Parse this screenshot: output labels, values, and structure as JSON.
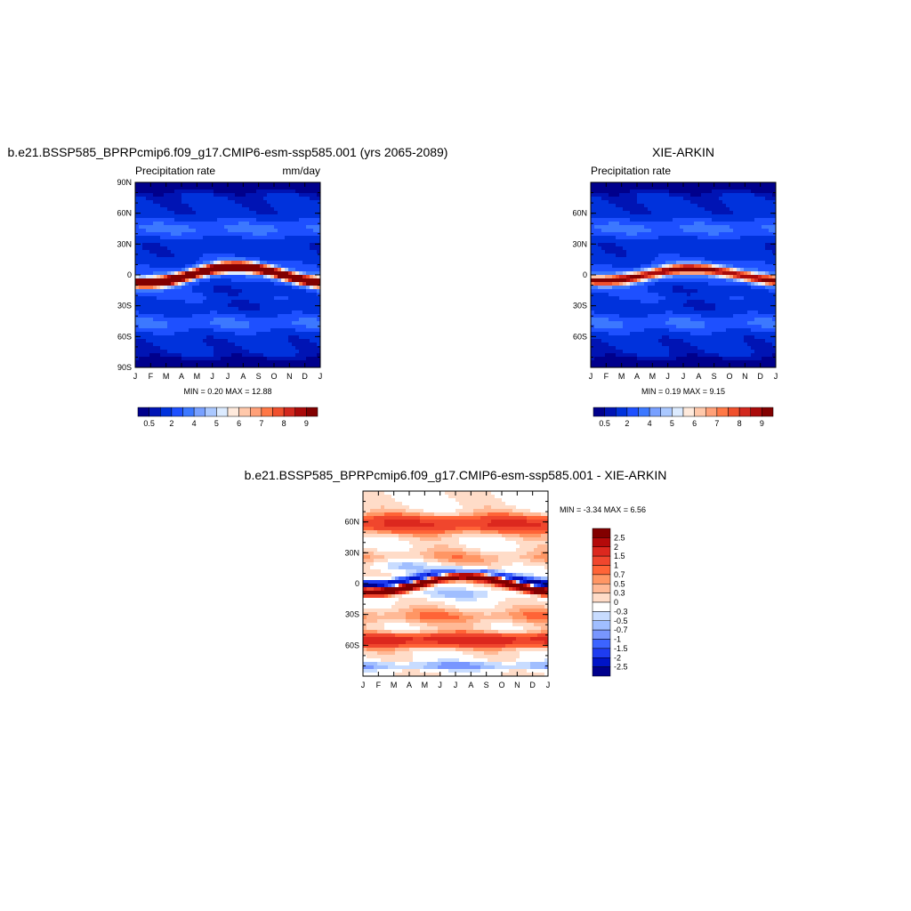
{
  "chart_data": [
    {
      "type": "heatmap",
      "title": "b.e21.BSSP585_BPRPcmip6.f09_g17.CMIP6-esm-ssp585.001 (yrs 2065-2089)",
      "left_label": "Precipitation rate",
      "right_label": "mm/day",
      "x": [
        "J",
        "F",
        "M",
        "A",
        "M",
        "J",
        "J",
        "A",
        "S",
        "O",
        "N",
        "D",
        "J"
      ],
      "y_ticks": [
        "90N",
        "60N",
        "30N",
        "0",
        "30S",
        "60S",
        "90S"
      ],
      "y_tick_lats": [
        90,
        60,
        30,
        0,
        -30,
        -60,
        -90
      ],
      "ylim": [
        -90,
        90
      ],
      "stats": "MIN =   0.20 MAX =  12.88",
      "min": 0.2,
      "max": 12.88,
      "itcz_amplitude_deg": 8,
      "colorbar": {
        "labels": [
          "0.5",
          "2",
          "4",
          "5",
          "6",
          "7",
          "8",
          "9"
        ],
        "colors": [
          "#00008c",
          "#0014b4",
          "#0032dc",
          "#1e50ff",
          "#3c78ff",
          "#78a0ff",
          "#aac8ff",
          "#dcebff",
          "#ffeadc",
          "#ffc8aa",
          "#ffa078",
          "#ff7846",
          "#f0502d",
          "#d2281e",
          "#aa0a0a",
          "#820000"
        ]
      }
    },
    {
      "type": "heatmap",
      "title": "XIE-ARKIN",
      "left_label": "Precipitation rate",
      "x": [
        "J",
        "F",
        "M",
        "A",
        "M",
        "J",
        "J",
        "A",
        "S",
        "O",
        "N",
        "D",
        "J"
      ],
      "y_ticks": [
        "60N",
        "30N",
        "0",
        "30S",
        "60S"
      ],
      "y_tick_lats": [
        60,
        30,
        0,
        -30,
        -60
      ],
      "ylim": [
        -90,
        90
      ],
      "stats": "MIN =   0.19 MAX =   9.15",
      "min": 0.19,
      "max": 9.15,
      "itcz_amplitude_deg": 6,
      "colorbar": {
        "labels": [
          "0.5",
          "2",
          "4",
          "5",
          "6",
          "7",
          "8",
          "9"
        ],
        "colors": [
          "#00008c",
          "#0014b4",
          "#0032dc",
          "#1e50ff",
          "#3c78ff",
          "#78a0ff",
          "#aac8ff",
          "#dcebff",
          "#ffeadc",
          "#ffc8aa",
          "#ffa078",
          "#ff7846",
          "#f0502d",
          "#d2281e",
          "#aa0a0a",
          "#820000"
        ]
      }
    },
    {
      "type": "heatmap",
      "title": "b.e21.BSSP585_BPRPcmip6.f09_g17.CMIP6-esm-ssp585.001 - XIE-ARKIN",
      "x": [
        "J",
        "F",
        "M",
        "A",
        "M",
        "J",
        "J",
        "A",
        "S",
        "O",
        "N",
        "D",
        "J"
      ],
      "y_ticks": [
        "60N",
        "30N",
        "0",
        "30S",
        "60S"
      ],
      "y_tick_lats": [
        60,
        30,
        0,
        -30,
        -60
      ],
      "ylim": [
        -90,
        90
      ],
      "stats": "MIN =  -3.34 MAX =   6.56",
      "min": -3.34,
      "max": 6.56,
      "colorbar": {
        "labels": [
          "2.5",
          "2",
          "1.5",
          "1",
          "0.7",
          "0.5",
          "0.3",
          "0",
          "-0.3",
          "-0.5",
          "-0.7",
          "-1",
          "-1.5",
          "-2",
          "-2.5"
        ],
        "colors": [
          "#820000",
          "#b40a0a",
          "#dc281e",
          "#f0462d",
          "#ff6437",
          "#ff9664",
          "#ffb996",
          "#ffdcc8",
          "#ffffff",
          "#c8dcff",
          "#a0beff",
          "#7896ff",
          "#3c64ff",
          "#1e3cf0",
          "#0014c8",
          "#00008c"
        ]
      }
    }
  ]
}
